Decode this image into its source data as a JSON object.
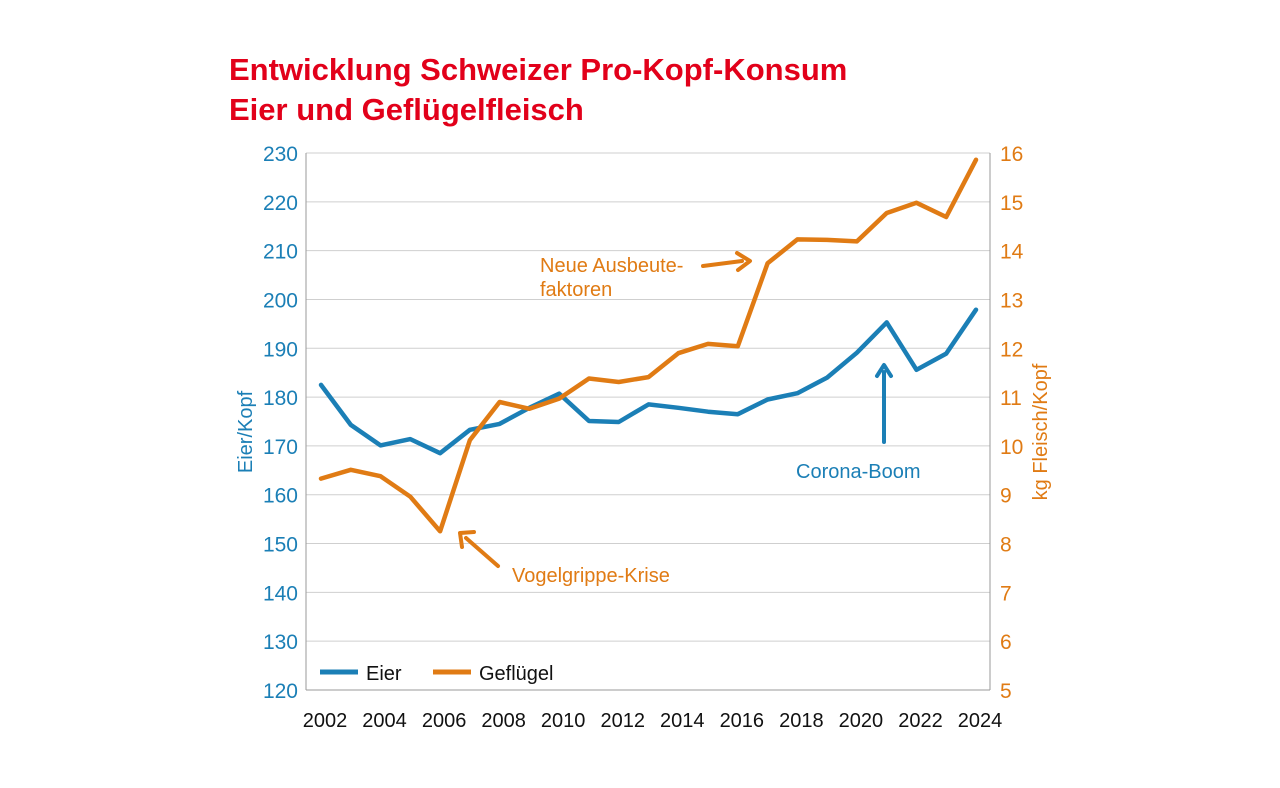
{
  "title": {
    "line1": "Entwicklung Schweizer Pro-Kopf-Konsum",
    "line2": "Eier und Geflügelfleisch"
  },
  "colors": {
    "title": "#e2001a",
    "eier": "#1b7fb6",
    "gefluegel": "#e07b14",
    "grid": "#cfcfcf",
    "axis_text": "#111111"
  },
  "chart_data": {
    "type": "line",
    "x": [
      2002,
      2003,
      2004,
      2005,
      2006,
      2007,
      2008,
      2009,
      2010,
      2011,
      2012,
      2013,
      2014,
      2015,
      2016,
      2017,
      2018,
      2019,
      2020,
      2021,
      2022,
      2023,
      2024
    ],
    "x_ticks": [
      "2002",
      "2004",
      "2006",
      "2008",
      "2010",
      "2012",
      "2014",
      "2016",
      "2018",
      "2020",
      "2022",
      "2024"
    ],
    "y_left": {
      "label": "Eier/Kopf",
      "lim": [
        120,
        230
      ],
      "ticks": [
        "120",
        "130",
        "140",
        "150",
        "160",
        "170",
        "180",
        "190",
        "200",
        "210",
        "220",
        "230"
      ]
    },
    "y_right": {
      "label": "kg Fleisch/Kopf",
      "lim": [
        5,
        16
      ],
      "ticks": [
        "5",
        "6",
        "7",
        "8",
        "9",
        "10",
        "11",
        "12",
        "13",
        "14",
        "15",
        "16"
      ]
    },
    "grid": true,
    "legend_position": "bottom-left",
    "series": [
      {
        "name": "Eier",
        "axis": "left",
        "values": [
          182.5,
          174.3,
          170.1,
          171.4,
          168.5,
          173.3,
          174.5,
          177.8,
          180.7,
          175.1,
          174.9,
          178.5,
          177.8,
          177.0,
          176.5,
          179.5,
          180.8,
          184.0,
          189.1,
          195.3,
          185.6,
          188.9,
          197.9
        ]
      },
      {
        "name": "Geflügel",
        "axis": "right",
        "values": [
          9.33,
          9.51,
          9.38,
          8.96,
          8.25,
          10.12,
          10.9,
          10.76,
          10.97,
          11.38,
          11.31,
          11.41,
          11.9,
          12.09,
          12.04,
          13.74,
          14.23,
          14.22,
          14.19,
          14.77,
          14.98,
          14.69,
          15.86
        ]
      }
    ],
    "annotations": {
      "ausbeute_line1": "Neue Ausbeute-",
      "ausbeute_line2": "faktoren",
      "vogelgrippe": "Vogelgrippe-Krise",
      "corona": "Corona-Boom"
    }
  }
}
